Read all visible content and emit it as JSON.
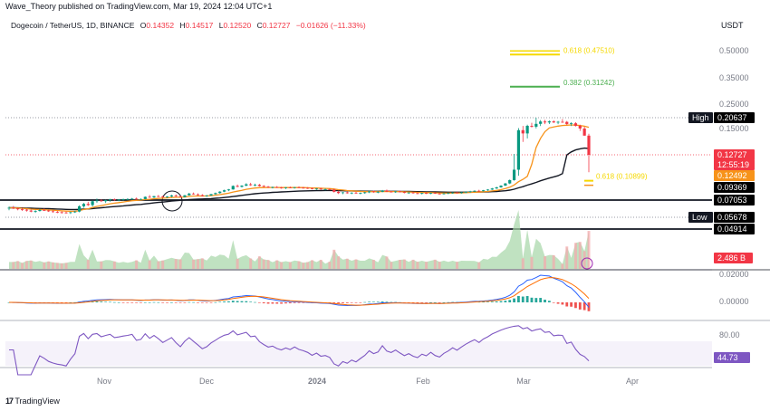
{
  "header": {
    "text": "Wave_Theory published on TradingView.com, Mar 19, 2024 12:04 UTC+1"
  },
  "symbol": {
    "name": "Dogecoin / TetherUS, 1D, BINANCE",
    "o_label": "O",
    "o": "0.14352",
    "h_label": "H",
    "h": "0.14517",
    "l_label": "L",
    "l": "0.12520",
    "c_label": "C",
    "c": "0.12727",
    "change": "−0.01626 (−11.33%)"
  },
  "currency": "USDT",
  "footer": {
    "brand": "TradingView"
  },
  "chart_data": {
    "type": "candlestick",
    "x_ticks": [
      "Nov",
      "Dec",
      "2024",
      "Feb",
      "Mar",
      "Apr"
    ],
    "price_axis_ticks": [
      "0.50000",
      "0.35000",
      "0.25000",
      "0.15000",
      "0.09369",
      "0.07053",
      "0.04914"
    ],
    "fib_levels": [
      {
        "label": "0.618 (0.47510)",
        "value": 0.4751,
        "color": "#f5d800"
      },
      {
        "label": "0.382 (0.31242)",
        "value": 0.31242,
        "color": "#4caf50"
      },
      {
        "label": "0.618 (0.10899)",
        "value": 0.10899,
        "color": "#f5d800"
      }
    ],
    "price_tags": [
      {
        "label": "High",
        "value": "0.20637",
        "color": "#000000"
      },
      {
        "label": "",
        "value": "0.12727",
        "color": "#f23645"
      },
      {
        "label": "",
        "value": "12:55:19",
        "color": "#f23645"
      },
      {
        "label": "",
        "value": "0.12492",
        "color": "#f7931a"
      },
      {
        "label": "",
        "value": "0.09369",
        "color": "#000000"
      },
      {
        "label": "",
        "value": "0.07053",
        "color": "#000000"
      },
      {
        "label": "Low",
        "value": "0.05678",
        "color": "#000000"
      },
      {
        "label": "",
        "value": "0.04914",
        "color": "#000000"
      }
    ],
    "candles": [
      [
        0.0635,
        0.065,
        0.062,
        0.064
      ],
      [
        0.064,
        0.0655,
        0.063,
        0.0635
      ],
      [
        0.0635,
        0.064,
        0.062,
        0.0628
      ],
      [
        0.0628,
        0.064,
        0.0615,
        0.0625
      ],
      [
        0.0625,
        0.063,
        0.061,
        0.0618
      ],
      [
        0.0618,
        0.0625,
        0.0605,
        0.061
      ],
      [
        0.061,
        0.062,
        0.06,
        0.0615
      ],
      [
        0.0615,
        0.063,
        0.061,
        0.0622
      ],
      [
        0.0622,
        0.0635,
        0.0615,
        0.0618
      ],
      [
        0.0618,
        0.0625,
        0.0608,
        0.0612
      ],
      [
        0.0612,
        0.062,
        0.0602,
        0.0608
      ],
      [
        0.0608,
        0.0615,
        0.0598,
        0.0605
      ],
      [
        0.0605,
        0.0612,
        0.0595,
        0.0603
      ],
      [
        0.0603,
        0.061,
        0.0595,
        0.06
      ],
      [
        0.06,
        0.0608,
        0.0592,
        0.0605
      ],
      [
        0.0605,
        0.0615,
        0.06,
        0.061
      ],
      [
        0.061,
        0.066,
        0.0605,
        0.0652
      ],
      [
        0.0652,
        0.068,
        0.064,
        0.0672
      ],
      [
        0.0672,
        0.069,
        0.0655,
        0.0662
      ],
      [
        0.0662,
        0.07,
        0.065,
        0.0695
      ],
      [
        0.0695,
        0.073,
        0.068,
        0.0702
      ],
      [
        0.0702,
        0.072,
        0.0688,
        0.0695
      ],
      [
        0.0695,
        0.071,
        0.068,
        0.0705
      ],
      [
        0.0705,
        0.0725,
        0.069,
        0.0715
      ],
      [
        0.0715,
        0.073,
        0.0698,
        0.0708
      ],
      [
        0.0708,
        0.0722,
        0.0695,
        0.0712
      ],
      [
        0.0712,
        0.0728,
        0.07,
        0.0718
      ],
      [
        0.0718,
        0.0735,
        0.0705,
        0.0722
      ],
      [
        0.0722,
        0.074,
        0.071,
        0.0728
      ],
      [
        0.0728,
        0.0745,
        0.0712,
        0.0718
      ],
      [
        0.0718,
        0.073,
        0.0705,
        0.0722
      ],
      [
        0.0722,
        0.0765,
        0.0715,
        0.0758
      ],
      [
        0.0758,
        0.079,
        0.074,
        0.0748
      ],
      [
        0.0748,
        0.0775,
        0.0738,
        0.077
      ],
      [
        0.077,
        0.079,
        0.0752,
        0.0762
      ],
      [
        0.0762,
        0.0778,
        0.0745,
        0.0752
      ],
      [
        0.0752,
        0.077,
        0.074,
        0.0765
      ],
      [
        0.0765,
        0.0795,
        0.0752,
        0.0782
      ],
      [
        0.0782,
        0.08,
        0.076,
        0.0768
      ],
      [
        0.0768,
        0.078,
        0.075,
        0.0755
      ],
      [
        0.0755,
        0.079,
        0.0748,
        0.0785
      ],
      [
        0.0785,
        0.083,
        0.078,
        0.0815
      ],
      [
        0.0815,
        0.0835,
        0.0795,
        0.0802
      ],
      [
        0.0802,
        0.082,
        0.0778,
        0.0788
      ],
      [
        0.0788,
        0.0805,
        0.0765,
        0.0772
      ],
      [
        0.0772,
        0.079,
        0.0758,
        0.0782
      ],
      [
        0.0782,
        0.081,
        0.0775,
        0.0805
      ],
      [
        0.0805,
        0.0835,
        0.0795,
        0.0825
      ],
      [
        0.0825,
        0.086,
        0.0815,
        0.0852
      ],
      [
        0.0852,
        0.089,
        0.0842,
        0.0878
      ],
      [
        0.0878,
        0.0905,
        0.0862,
        0.0895
      ],
      [
        0.0895,
        0.098,
        0.089,
        0.0968
      ],
      [
        0.0968,
        0.1,
        0.094,
        0.095
      ],
      [
        0.095,
        0.0985,
        0.0935,
        0.0975
      ],
      [
        0.0975,
        0.103,
        0.0962,
        0.1005
      ],
      [
        0.1005,
        0.104,
        0.097,
        0.0985
      ],
      [
        0.0985,
        0.102,
        0.0962,
        0.0995
      ],
      [
        0.0995,
        0.1015,
        0.0955,
        0.0968
      ],
      [
        0.0968,
        0.0985,
        0.0935,
        0.0952
      ],
      [
        0.0952,
        0.097,
        0.0925,
        0.0938
      ],
      [
        0.0938,
        0.0955,
        0.0915,
        0.0945
      ],
      [
        0.0945,
        0.0965,
        0.0925,
        0.0932
      ],
      [
        0.0932,
        0.095,
        0.091,
        0.0925
      ],
      [
        0.0925,
        0.0945,
        0.0905,
        0.0935
      ],
      [
        0.0935,
        0.0955,
        0.0918,
        0.0928
      ],
      [
        0.0928,
        0.0948,
        0.0912,
        0.094
      ],
      [
        0.094,
        0.0958,
        0.0922,
        0.093
      ],
      [
        0.093,
        0.0948,
        0.0912,
        0.0925
      ],
      [
        0.0925,
        0.0942,
        0.0905,
        0.0918
      ],
      [
        0.0918,
        0.0935,
        0.0895,
        0.0905
      ],
      [
        0.0905,
        0.092,
        0.0885,
        0.0912
      ],
      [
        0.0912,
        0.0928,
        0.089,
        0.0898
      ],
      [
        0.0898,
        0.0915,
        0.0878,
        0.09
      ],
      [
        0.09,
        0.0918,
        0.0882,
        0.0892
      ],
      [
        0.0892,
        0.091,
        0.0835,
        0.0848
      ],
      [
        0.0848,
        0.0868,
        0.0808,
        0.0825
      ],
      [
        0.0825,
        0.0845,
        0.0805,
        0.0838
      ],
      [
        0.0838,
        0.0852,
        0.0815,
        0.0822
      ],
      [
        0.0822,
        0.084,
        0.0805,
        0.0832
      ],
      [
        0.0832,
        0.0848,
        0.0812,
        0.0818
      ],
      [
        0.0818,
        0.0835,
        0.0802,
        0.0828
      ],
      [
        0.0828,
        0.0848,
        0.0812,
        0.0838
      ],
      [
        0.0838,
        0.0865,
        0.0825,
        0.0855
      ],
      [
        0.0855,
        0.0872,
        0.0832,
        0.0842
      ],
      [
        0.0842,
        0.0858,
        0.0822,
        0.0848
      ],
      [
        0.0848,
        0.0885,
        0.084,
        0.0875
      ],
      [
        0.0875,
        0.0892,
        0.0845,
        0.0852
      ],
      [
        0.0852,
        0.087,
        0.0835,
        0.0845
      ],
      [
        0.0845,
        0.0862,
        0.083,
        0.0855
      ],
      [
        0.0855,
        0.0872,
        0.0838,
        0.0842
      ],
      [
        0.0842,
        0.0855,
        0.082,
        0.0828
      ],
      [
        0.0828,
        0.0842,
        0.081,
        0.0835
      ],
      [
        0.0835,
        0.0848,
        0.0815,
        0.0822
      ],
      [
        0.0822,
        0.0835,
        0.0805,
        0.0815
      ],
      [
        0.0815,
        0.083,
        0.08,
        0.0825
      ],
      [
        0.0825,
        0.0838,
        0.0808,
        0.0818
      ],
      [
        0.0818,
        0.0832,
        0.0805,
        0.0828
      ],
      [
        0.0828,
        0.084,
        0.081,
        0.0815
      ],
      [
        0.0815,
        0.0828,
        0.08,
        0.0808
      ],
      [
        0.0808,
        0.0825,
        0.0798,
        0.0818
      ],
      [
        0.0818,
        0.0832,
        0.0805,
        0.0825
      ],
      [
        0.0825,
        0.0842,
        0.0812,
        0.0835
      ],
      [
        0.0835,
        0.0848,
        0.082,
        0.0828
      ],
      [
        0.0828,
        0.0845,
        0.0815,
        0.0838
      ],
      [
        0.0838,
        0.0858,
        0.0825,
        0.0848
      ],
      [
        0.0848,
        0.0868,
        0.0832,
        0.0858
      ],
      [
        0.0858,
        0.0878,
        0.0845,
        0.0868
      ],
      [
        0.0868,
        0.0888,
        0.0852,
        0.0862
      ],
      [
        0.0862,
        0.0885,
        0.0855,
        0.0878
      ],
      [
        0.0878,
        0.0902,
        0.0865,
        0.0892
      ],
      [
        0.0892,
        0.0925,
        0.0885,
        0.0915
      ],
      [
        0.0915,
        0.095,
        0.0905,
        0.0938
      ],
      [
        0.0938,
        0.0985,
        0.093,
        0.0975
      ],
      [
        0.0975,
        0.1035,
        0.0968,
        0.1025
      ],
      [
        0.1025,
        0.112,
        0.101,
        0.1105
      ],
      [
        0.1105,
        0.128,
        0.109,
        0.1255
      ],
      [
        0.1255,
        0.152,
        0.122,
        0.1485
      ],
      [
        0.1485,
        0.162,
        0.138,
        0.1455
      ],
      [
        0.1455,
        0.168,
        0.141,
        0.1625
      ],
      [
        0.1625,
        0.178,
        0.1545,
        0.1585
      ],
      [
        0.1585,
        0.2064,
        0.1505,
        0.1722
      ],
      [
        0.1722,
        0.1925,
        0.1615,
        0.1845
      ],
      [
        0.1845,
        0.1935,
        0.1705,
        0.1795
      ],
      [
        0.1795,
        0.1902,
        0.1712,
        0.1852
      ],
      [
        0.1852,
        0.1915,
        0.1768,
        0.1795
      ],
      [
        0.1795,
        0.1875,
        0.1705,
        0.1828
      ],
      [
        0.1828,
        0.1985,
        0.1778,
        0.1825
      ],
      [
        0.1825,
        0.1875,
        0.1662,
        0.1715
      ],
      [
        0.1715,
        0.1802,
        0.1615,
        0.1752
      ],
      [
        0.1752,
        0.1808,
        0.1595,
        0.1625
      ],
      [
        0.1625,
        0.168,
        0.1478,
        0.1502
      ],
      [
        0.1502,
        0.1585,
        0.1435,
        0.1435
      ],
      [
        0.1435,
        0.1452,
        0.1252,
        0.1273
      ]
    ],
    "volume_last": "2.486 B",
    "macd_axis_ticks": [
      "0.02000",
      "0.00000"
    ],
    "rsi_axis_ticks": [
      "80.00"
    ],
    "rsi_last": "44.73"
  }
}
